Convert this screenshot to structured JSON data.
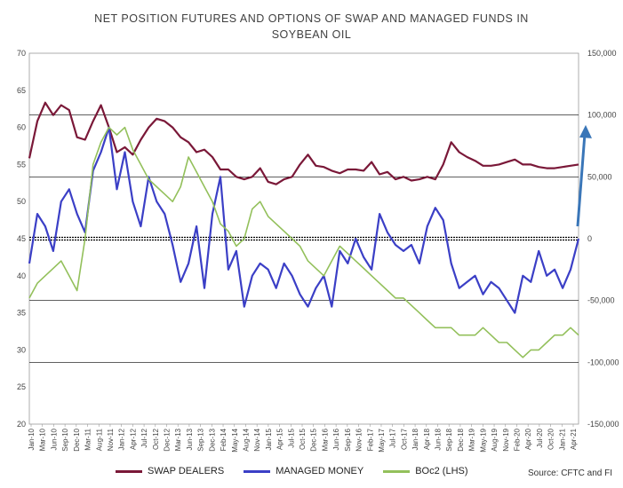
{
  "chart_data": {
    "type": "line",
    "title": "NET POSITION FUTURES AND OPTIONS OF SWAP AND MANAGED FUNDS IN SOYBEAN OIL",
    "title_lines": [
      "NET POSITION FUTURES AND OPTIONS OF SWAP AND MANAGED FUNDS IN",
      "SOYBEAN OIL"
    ],
    "source": "Source: CFTC and FI",
    "left_axis": {
      "ylim": [
        20,
        70
      ],
      "ticks": [
        "20",
        "25",
        "30",
        "35",
        "40",
        "45",
        "50",
        "55",
        "60",
        "65",
        "70"
      ]
    },
    "right_axis": {
      "ylim": [
        -150000,
        150000
      ],
      "ticks": [
        "-150,000",
        "-100,000",
        "-50,000",
        "0",
        "50,000",
        "100,000",
        "150,000"
      ]
    },
    "x_ticks": [
      "Jan-10",
      "Mar-10",
      "Jun-10",
      "Sep-10",
      "Dec-10",
      "Mar-11",
      "Aug-11",
      "Nov-11",
      "Jan-12",
      "Apr-12",
      "Jul-12",
      "Oct-12",
      "Dec-12",
      "Mar-13",
      "Jun-13",
      "Sep-13",
      "Dec-13",
      "Feb-14",
      "May-14",
      "Aug-14",
      "Nov-14",
      "Jan-15",
      "Apr-15",
      "Jul-15",
      "Oct-15",
      "Dec-15",
      "Mar-16",
      "Jun-16",
      "Sep-16",
      "Nov-16",
      "Feb-17",
      "May-17",
      "Jul-17",
      "Oct-17",
      "Jan-18",
      "Apr-18",
      "Jun-18",
      "Sep-18",
      "Dec-18",
      "Mar-19",
      "May-19",
      "Aug-19",
      "Nov-19",
      "Feb-20",
      "Apr-20",
      "Jul-20",
      "Oct-20",
      "Jan-21",
      "Apr-21"
    ],
    "grid": "horizontal",
    "legend_position": "bottom",
    "colors": {
      "swap": "#7a1838",
      "managed": "#3b3fc6",
      "boc2": "#93c05b",
      "arrow": "#3a76b8"
    },
    "series": [
      {
        "name": "SWAP DEALERS",
        "key": "swap",
        "axis": "right",
        "x": [
          0,
          2,
          4,
          6,
          8,
          10,
          12,
          14,
          16,
          18,
          20,
          22,
          24,
          26,
          28,
          30,
          32,
          34,
          36,
          38,
          40,
          42,
          44,
          46,
          48,
          50,
          52,
          54,
          56,
          58,
          60,
          62,
          64,
          66,
          68,
          70,
          72,
          74,
          76,
          78,
          80,
          82,
          84,
          86,
          88,
          90,
          92,
          94,
          96,
          98,
          100,
          102,
          104,
          106,
          108,
          110,
          112,
          114,
          116,
          118,
          120,
          122,
          124,
          126,
          128,
          130,
          132,
          134,
          136,
          138
        ],
        "values": [
          65000,
          95000,
          110000,
          100000,
          108000,
          104000,
          82000,
          80000,
          95000,
          108000,
          90000,
          70000,
          74000,
          68000,
          80000,
          90000,
          97000,
          95000,
          90000,
          82000,
          78000,
          70000,
          72000,
          66000,
          56000,
          56000,
          50000,
          48000,
          50000,
          57000,
          46000,
          44000,
          48000,
          50000,
          60000,
          68000,
          59000,
          58000,
          55000,
          53000,
          56000,
          56000,
          55000,
          62000,
          52000,
          54000,
          48000,
          50000,
          47000,
          48000,
          50000,
          48000,
          60000,
          78000,
          70000,
          66000,
          63000,
          59000,
          59000,
          60000,
          62000,
          64000,
          60000,
          60000,
          58000,
          57000,
          57000,
          58000,
          59000,
          60000
        ]
      },
      {
        "name": "MANAGED MONEY",
        "key": "managed",
        "axis": "right",
        "x": [
          0,
          2,
          4,
          6,
          8,
          10,
          12,
          14,
          16,
          18,
          20,
          22,
          24,
          26,
          28,
          30,
          32,
          34,
          36,
          38,
          40,
          42,
          44,
          46,
          48,
          50,
          52,
          54,
          56,
          58,
          60,
          62,
          64,
          66,
          68,
          70,
          72,
          74,
          76,
          78,
          80,
          82,
          84,
          86,
          88,
          90,
          92,
          94,
          96,
          98,
          100,
          102,
          104,
          106,
          108,
          110,
          112,
          114,
          116,
          118,
          120,
          122,
          124,
          126,
          128,
          130,
          132,
          134,
          136,
          138
        ],
        "values": [
          -20000,
          20000,
          10000,
          -10000,
          30000,
          40000,
          20000,
          5000,
          55000,
          70000,
          90000,
          40000,
          70000,
          30000,
          10000,
          50000,
          30000,
          20000,
          -5000,
          -35000,
          -20000,
          10000,
          -40000,
          20000,
          50000,
          -25000,
          -10000,
          -55000,
          -30000,
          -20000,
          -25000,
          -40000,
          -20000,
          -30000,
          -45000,
          -55000,
          -40000,
          -30000,
          -55000,
          -10000,
          -20000,
          0,
          -15000,
          -25000,
          20000,
          5000,
          -5000,
          -10000,
          -5000,
          -20000,
          10000,
          25000,
          15000,
          -20000,
          -40000,
          -35000,
          -30000,
          -45000,
          -35000,
          -40000,
          -50000,
          -60000,
          -30000,
          -35000,
          -10000,
          -30000,
          -25000,
          -40000,
          -25000,
          0
        ]
      },
      {
        "name": "BOc2 (LHS)",
        "key": "boc2",
        "axis": "left",
        "x": [
          0,
          2,
          4,
          6,
          8,
          10,
          12,
          14,
          16,
          18,
          20,
          22,
          24,
          26,
          28,
          30,
          32,
          34,
          36,
          38,
          40,
          42,
          44,
          46,
          48,
          50,
          52,
          54,
          56,
          58,
          60,
          62,
          64,
          66,
          68,
          70,
          72,
          74,
          76,
          78,
          80,
          82,
          84,
          86,
          88,
          90,
          92,
          94,
          96,
          98,
          100,
          102,
          104,
          106,
          108,
          110,
          112,
          114,
          116,
          118,
          120,
          122,
          124,
          126,
          128,
          130,
          132,
          134,
          136,
          138
        ],
        "values": [
          37,
          39,
          40,
          41,
          42,
          40,
          38,
          45,
          55,
          58,
          60,
          59,
          60,
          57,
          55,
          53,
          52,
          51,
          50,
          52,
          56,
          54,
          52,
          50,
          47,
          46,
          44,
          45,
          49,
          50,
          48,
          47,
          46,
          45,
          44,
          42,
          41,
          40,
          42,
          44,
          43,
          42,
          41,
          40,
          39,
          38,
          37,
          37,
          36,
          35,
          34,
          33,
          33,
          33,
          32,
          32,
          32,
          33,
          32,
          31,
          31,
          30,
          29,
          30,
          30,
          31,
          32,
          32,
          33,
          32
        ]
      }
    ]
  },
  "legend": {
    "swap": "SWAP DEALERS",
    "managed": "MANAGED MONEY",
    "boc2": "BOc2 (LHS)"
  }
}
